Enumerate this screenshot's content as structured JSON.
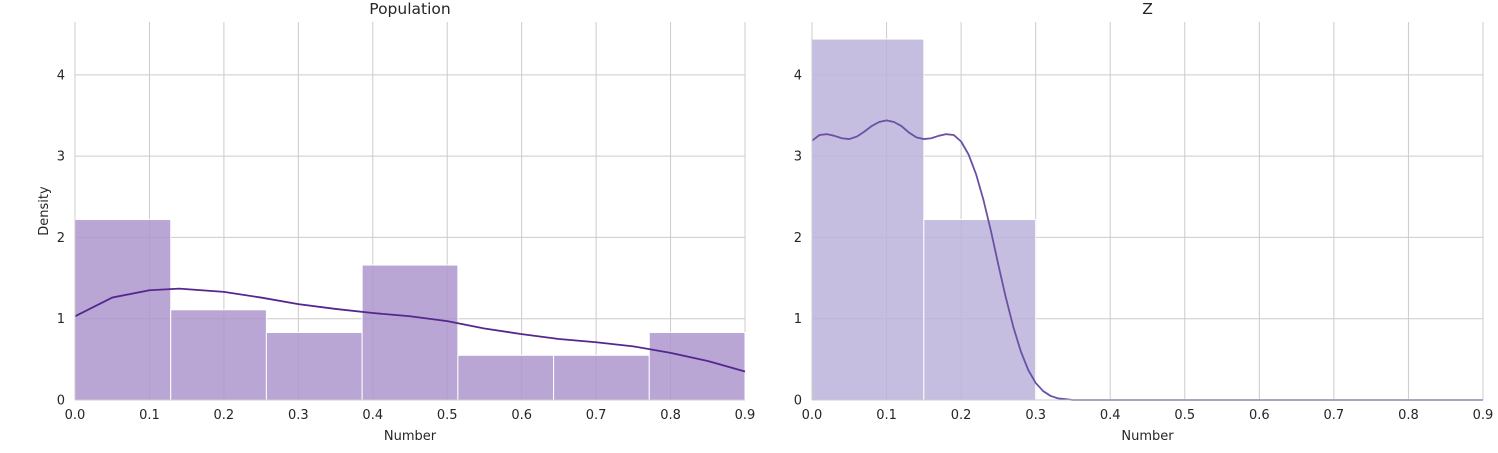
{
  "chart_data": [
    {
      "type": "bar",
      "title": "Population",
      "xlabel": "Number",
      "ylabel": "Density",
      "xlim": [
        0.0,
        0.9
      ],
      "ylim": [
        0,
        4.65
      ],
      "xticks": [
        "0.0",
        "0.1",
        "0.2",
        "0.3",
        "0.4",
        "0.5",
        "0.6",
        "0.7",
        "0.8",
        "0.9"
      ],
      "yticks": [
        "0",
        "1",
        "2",
        "3",
        "4"
      ],
      "grid": true,
      "bar_color": "#ad96cc",
      "line_color": "#54278f",
      "bins": [
        {
          "x0": 0.0,
          "x1": 0.1286,
          "density": 2.22
        },
        {
          "x0": 0.1286,
          "x1": 0.2571,
          "density": 1.11
        },
        {
          "x0": 0.2571,
          "x1": 0.3857,
          "density": 0.83
        },
        {
          "x0": 0.3857,
          "x1": 0.5143,
          "density": 1.66
        },
        {
          "x0": 0.5143,
          "x1": 0.6429,
          "density": 0.55
        },
        {
          "x0": 0.6429,
          "x1": 0.7714,
          "density": 0.55
        },
        {
          "x0": 0.7714,
          "x1": 0.9,
          "density": 0.83
        }
      ],
      "kde": {
        "x": [
          0.0,
          0.05,
          0.1,
          0.14,
          0.2,
          0.25,
          0.3,
          0.35,
          0.4,
          0.45,
          0.5,
          0.55,
          0.6,
          0.65,
          0.7,
          0.75,
          0.8,
          0.85,
          0.9
        ],
        "y": [
          1.03,
          1.26,
          1.35,
          1.37,
          1.33,
          1.26,
          1.18,
          1.12,
          1.07,
          1.03,
          0.97,
          0.88,
          0.81,
          0.75,
          0.71,
          0.66,
          0.58,
          0.48,
          0.35
        ]
      }
    },
    {
      "type": "bar",
      "title": "Z",
      "xlabel": "Number",
      "ylabel": "",
      "xlim": [
        0.0,
        0.9
      ],
      "ylim": [
        0,
        4.65
      ],
      "xticks": [
        "0.0",
        "0.1",
        "0.2",
        "0.3",
        "0.4",
        "0.5",
        "0.6",
        "0.7",
        "0.8",
        "0.9"
      ],
      "yticks": [
        "0",
        "1",
        "2",
        "3",
        "4"
      ],
      "grid": true,
      "bar_color": "#bcb3da",
      "line_color": "#6a51a3",
      "bins": [
        {
          "x0": 0.0,
          "x1": 0.15,
          "density": 4.44
        },
        {
          "x0": 0.15,
          "x1": 0.3,
          "density": 2.22
        }
      ],
      "kde": {
        "x": [
          0.0,
          0.01,
          0.02,
          0.03,
          0.04,
          0.05,
          0.06,
          0.07,
          0.08,
          0.09,
          0.1,
          0.11,
          0.12,
          0.13,
          0.14,
          0.15,
          0.16,
          0.17,
          0.18,
          0.19,
          0.2,
          0.21,
          0.22,
          0.23,
          0.24,
          0.25,
          0.26,
          0.27,
          0.28,
          0.29,
          0.3,
          0.31,
          0.32,
          0.33,
          0.34,
          0.35,
          0.37,
          0.4,
          0.5,
          0.6,
          0.7,
          0.8,
          0.9
        ],
        "y": [
          3.19,
          3.26,
          3.27,
          3.25,
          3.22,
          3.21,
          3.24,
          3.3,
          3.37,
          3.42,
          3.44,
          3.42,
          3.37,
          3.29,
          3.23,
          3.21,
          3.22,
          3.25,
          3.27,
          3.26,
          3.18,
          3.02,
          2.78,
          2.46,
          2.08,
          1.66,
          1.26,
          0.9,
          0.6,
          0.37,
          0.21,
          0.11,
          0.05,
          0.02,
          0.01,
          0.0,
          0.0,
          0.0,
          0.0,
          0.0,
          0.0,
          0.0,
          0.0
        ]
      }
    }
  ]
}
